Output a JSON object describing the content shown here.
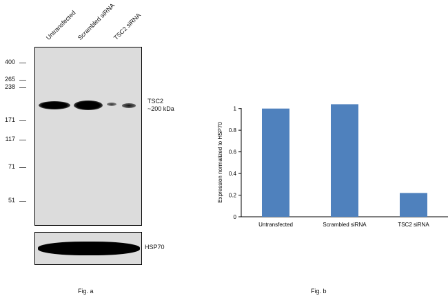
{
  "panel_a": {
    "lanes": [
      "Untransfected",
      "Scrambled siRNA",
      "TSC2 siRNA"
    ],
    "markers": [
      "400",
      "265",
      "238",
      "171",
      "117",
      "71",
      "51"
    ],
    "target_label_line1": "TSC2",
    "target_label_line2": "~200 kDa",
    "control_label": "HSP70",
    "caption": "Fig. a"
  },
  "panel_b": {
    "caption": "Fig. b"
  },
  "chart_data": {
    "type": "bar",
    "categories": [
      "Untransfected",
      "Scrambled siRNA",
      "TSC2 siRNA"
    ],
    "values": [
      1.0,
      1.04,
      0.22
    ],
    "ylabel": "Expression normalized to HSP70",
    "xlabel": "",
    "ylim": [
      0,
      1.1
    ],
    "yticks": [
      "0",
      "0.2",
      "0.4",
      "0.6",
      "0.8",
      "1"
    ],
    "bar_color": "#4f81bd"
  }
}
